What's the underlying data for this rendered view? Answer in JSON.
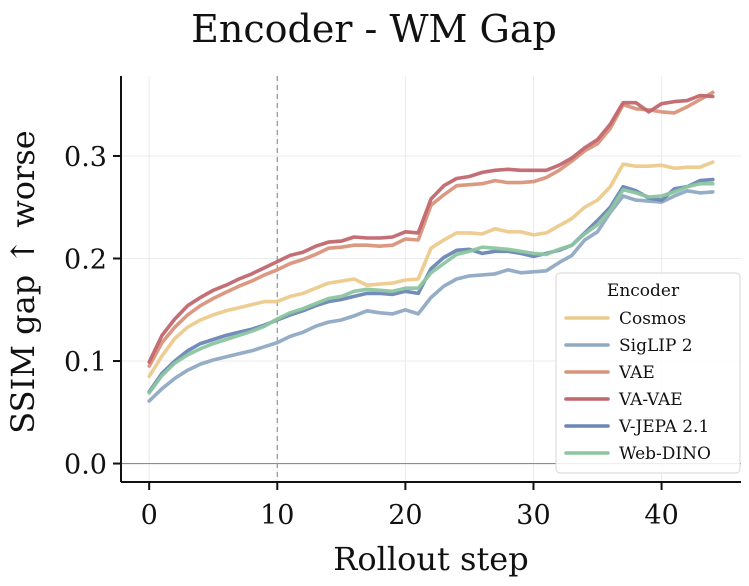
{
  "chart_data": {
    "type": "line",
    "title": "Encoder - WM Gap",
    "xlabel": "Rollout step",
    "ylabel": "SSIM gap ↑ worse",
    "xlim": [
      -2.2,
      46.2
    ],
    "ylim": [
      -0.018,
      0.378
    ],
    "xticks": [
      0,
      10,
      20,
      30,
      40
    ],
    "xtick_labels": [
      "0",
      "10",
      "20",
      "30",
      "40"
    ],
    "yticks": [
      0.0,
      0.1,
      0.2,
      0.3
    ],
    "ytick_labels": [
      "0.0",
      "0.1",
      "0.2",
      "0.3"
    ],
    "grid": true,
    "reference_hline_y": 0.0,
    "reference_vline_x": 10,
    "legend_title": "Encoder",
    "legend_position": "lower-right",
    "x": [
      0,
      1,
      2,
      3,
      4,
      5,
      6,
      7,
      8,
      9,
      10,
      11,
      12,
      13,
      14,
      15,
      16,
      17,
      18,
      19,
      20,
      21,
      22,
      23,
      24,
      25,
      26,
      27,
      28,
      29,
      30,
      31,
      32,
      33,
      34,
      35,
      36,
      37,
      38,
      39,
      40,
      41,
      42,
      43,
      44
    ],
    "series": [
      {
        "name": "Cosmos",
        "color": "#ecca8c",
        "values": [
          0.085,
          0.105,
          0.122,
          0.133,
          0.14,
          0.145,
          0.149,
          0.152,
          0.155,
          0.158,
          0.158,
          0.163,
          0.166,
          0.171,
          0.176,
          0.178,
          0.18,
          0.174,
          0.175,
          0.176,
          0.179,
          0.18,
          0.21,
          0.218,
          0.225,
          0.225,
          0.224,
          0.229,
          0.226,
          0.226,
          0.223,
          0.225,
          0.232,
          0.239,
          0.25,
          0.257,
          0.27,
          0.292,
          0.29,
          0.29,
          0.291,
          0.288,
          0.289,
          0.289,
          0.294
        ]
      },
      {
        "name": "SigLIP 2",
        "color": "#8fa9c3",
        "values": [
          0.061,
          0.073,
          0.083,
          0.091,
          0.097,
          0.101,
          0.104,
          0.107,
          0.11,
          0.114,
          0.118,
          0.124,
          0.128,
          0.134,
          0.138,
          0.14,
          0.144,
          0.149,
          0.147,
          0.146,
          0.15,
          0.146,
          0.162,
          0.173,
          0.18,
          0.183,
          0.184,
          0.185,
          0.189,
          0.186,
          0.187,
          0.188,
          0.196,
          0.203,
          0.218,
          0.226,
          0.245,
          0.261,
          0.257,
          0.256,
          0.255,
          0.261,
          0.266,
          0.264,
          0.265
        ]
      },
      {
        "name": "VAE",
        "color": "#d9937a",
        "values": [
          0.095,
          0.118,
          0.133,
          0.145,
          0.154,
          0.161,
          0.167,
          0.173,
          0.178,
          0.184,
          0.189,
          0.195,
          0.199,
          0.204,
          0.21,
          0.211,
          0.213,
          0.213,
          0.212,
          0.213,
          0.219,
          0.218,
          0.252,
          0.262,
          0.271,
          0.272,
          0.273,
          0.276,
          0.274,
          0.274,
          0.275,
          0.279,
          0.286,
          0.295,
          0.305,
          0.312,
          0.327,
          0.35,
          0.346,
          0.345,
          0.343,
          0.342,
          0.348,
          0.355,
          0.362
        ]
      },
      {
        "name": "VA-VAE",
        "color": "#c1676e",
        "values": [
          0.099,
          0.125,
          0.141,
          0.154,
          0.162,
          0.169,
          0.174,
          0.18,
          0.185,
          0.191,
          0.197,
          0.203,
          0.206,
          0.212,
          0.216,
          0.217,
          0.221,
          0.22,
          0.22,
          0.221,
          0.226,
          0.225,
          0.258,
          0.271,
          0.278,
          0.28,
          0.284,
          0.286,
          0.287,
          0.286,
          0.286,
          0.286,
          0.291,
          0.298,
          0.308,
          0.316,
          0.331,
          0.352,
          0.352,
          0.343,
          0.351,
          0.353,
          0.354,
          0.359,
          0.358
        ]
      },
      {
        "name": "V-JEPA 2.1",
        "color": "#6b86b5",
        "values": [
          0.07,
          0.088,
          0.1,
          0.11,
          0.117,
          0.121,
          0.125,
          0.128,
          0.131,
          0.135,
          0.14,
          0.145,
          0.149,
          0.154,
          0.158,
          0.16,
          0.163,
          0.166,
          0.166,
          0.165,
          0.168,
          0.166,
          0.19,
          0.201,
          0.208,
          0.209,
          0.205,
          0.207,
          0.207,
          0.205,
          0.202,
          0.205,
          0.208,
          0.213,
          0.225,
          0.237,
          0.25,
          0.27,
          0.266,
          0.259,
          0.257,
          0.268,
          0.27,
          0.276,
          0.277
        ]
      },
      {
        "name": "Web-DINO",
        "color": "#8cc6a0",
        "values": [
          0.069,
          0.086,
          0.098,
          0.106,
          0.112,
          0.117,
          0.121,
          0.125,
          0.129,
          0.134,
          0.141,
          0.147,
          0.151,
          0.156,
          0.161,
          0.163,
          0.168,
          0.17,
          0.169,
          0.168,
          0.171,
          0.171,
          0.186,
          0.195,
          0.204,
          0.207,
          0.211,
          0.21,
          0.209,
          0.207,
          0.205,
          0.204,
          0.209,
          0.213,
          0.224,
          0.233,
          0.247,
          0.267,
          0.264,
          0.26,
          0.261,
          0.265,
          0.27,
          0.273,
          0.273
        ]
      }
    ]
  }
}
